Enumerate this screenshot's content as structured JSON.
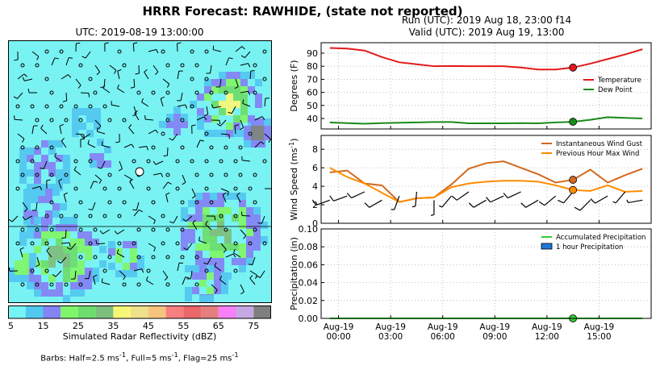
{
  "title": "HRRR Forecast: RAWHIDE, (state not reported)",
  "map": {
    "title": "UTC: 2019-08-19 13:00:00",
    "colorbar_label": "Simulated Radar Reflectivity (dBZ)",
    "colorbar_ticks": [
      "5",
      "15",
      "25",
      "35",
      "45",
      "55",
      "65",
      "75"
    ],
    "colorbar_colors": [
      "#76f4f4",
      "#53c7f0",
      "#8484f4",
      "#7ff56a",
      "#6ddd6d",
      "#7dbf7d",
      "#f7f777",
      "#efe08a",
      "#f7c47f",
      "#f77f7f",
      "#ec6767",
      "#e57f7f",
      "#f77ff7",
      "#c6a8e3",
      "#7f7f7f"
    ],
    "barbs_note_prefix": "Barbs: Half=2.5 ms",
    "barbs_note_full": ", Full=5 ms",
    "barbs_note_flag": ", Flag=25 ms",
    "barbs_note_sup": "-1"
  },
  "run_info": {
    "line1": "Run (UTC): 2019 Aug 18, 23:00 f14",
    "line2": "Valid (UTC): 2019 Aug 19, 13:00"
  },
  "chart_data": [
    {
      "type": "line",
      "ylabel": "Degrees (F)",
      "x": [
        0,
        1,
        2,
        3,
        4,
        5,
        6,
        7,
        8,
        9,
        10,
        11,
        12,
        13,
        14,
        15,
        16,
        17,
        18
      ],
      "ylim": [
        32,
        98
      ],
      "yticks": [
        40,
        50,
        60,
        70,
        80,
        90
      ],
      "legend": "right",
      "series": [
        {
          "name": "Temperature",
          "color": "#e31a1c",
          "values": [
            94,
            93.5,
            92,
            87,
            83,
            81.5,
            80,
            80.2,
            80,
            80,
            80,
            79,
            77.5,
            77.5,
            79,
            82,
            85.5,
            89,
            93
          ]
        },
        {
          "name": "Dew Point",
          "color": "#1a8a1a",
          "values": [
            37,
            36.5,
            36,
            36.5,
            36.8,
            37,
            37.3,
            37.3,
            36.3,
            36.3,
            36.3,
            36.5,
            36.3,
            37,
            37.5,
            39,
            41,
            40.5,
            40
          ]
        }
      ],
      "marker_index": 14
    },
    {
      "type": "line",
      "ylabel": "Wind Speed (ms",
      "ylabel_sup": "-1",
      "ylabel_suffix": ")",
      "x": [
        0,
        1,
        2,
        3,
        4,
        5,
        6,
        7,
        8,
        9,
        10,
        11,
        12,
        13,
        14,
        15,
        16,
        17,
        18
      ],
      "ylim": [
        0,
        9.5
      ],
      "yticks": [
        0,
        2,
        4,
        6,
        8
      ],
      "legend": "top-right",
      "series": [
        {
          "name": "Instantaneous Wind Gust",
          "color": "#d2691e",
          "values": [
            5.5,
            5.7,
            4.3,
            4.1,
            2.3,
            2.7,
            2.8,
            4.2,
            5.9,
            6.5,
            6.7,
            6.0,
            5.3,
            4.4,
            4.7,
            5.8,
            4.4,
            5.2,
            5.9
          ]
        },
        {
          "name": "Previous Hour Max Wind",
          "color": "#ff8c00",
          "values": [
            6.0,
            5.0,
            4.3,
            3.3,
            2.3,
            2.7,
            2.8,
            3.9,
            4.3,
            4.5,
            4.6,
            4.6,
            4.5,
            4.1,
            3.6,
            3.5,
            4.1,
            3.4,
            3.5
          ]
        }
      ],
      "marker_index": 14,
      "barbs": [
        {
          "x": 0,
          "dir": 250,
          "speed": 5
        },
        {
          "x": 1,
          "dir": 250,
          "speed": 5
        },
        {
          "x": 2,
          "dir": 245,
          "speed": 5
        },
        {
          "x": 3,
          "dir": 240,
          "speed": 5
        },
        {
          "x": 4,
          "dir": 200,
          "speed": 2.5
        },
        {
          "x": 5,
          "dir": 185,
          "speed": 2.5
        },
        {
          "x": 6,
          "dir": 180,
          "speed": 2.5
        },
        {
          "x": 7,
          "dir": 220,
          "speed": 2.5
        },
        {
          "x": 8,
          "dir": 235,
          "speed": 5
        },
        {
          "x": 9,
          "dir": 240,
          "speed": 5
        },
        {
          "x": 10,
          "dir": 245,
          "speed": 5
        },
        {
          "x": 11,
          "dir": 245,
          "speed": 5
        },
        {
          "x": 12,
          "dir": 240,
          "speed": 5
        },
        {
          "x": 13,
          "dir": 230,
          "speed": 5
        },
        {
          "x": 14,
          "dir": 220,
          "speed": 5
        },
        {
          "x": 15,
          "dir": 225,
          "speed": 5
        },
        {
          "x": 16,
          "dir": 240,
          "speed": 5
        },
        {
          "x": 17,
          "dir": 220,
          "speed": 2.5
        },
        {
          "x": 18,
          "dir": 260,
          "speed": 2.5
        }
      ]
    },
    {
      "type": "line",
      "ylabel": "Precipitation (in)",
      "x": [
        0,
        1,
        2,
        3,
        4,
        5,
        6,
        7,
        8,
        9,
        10,
        11,
        12,
        13,
        14,
        15,
        16,
        17,
        18
      ],
      "ylim": [
        0,
        0.1
      ],
      "yticks": [
        "0.00",
        "0.02",
        "0.04",
        "0.06",
        "0.08",
        "0.10"
      ],
      "legend": "top-right",
      "series": [
        {
          "name": "Accumulated Precipitation",
          "color": "#32cd32",
          "values": [
            0,
            0,
            0,
            0,
            0,
            0,
            0,
            0,
            0,
            0,
            0,
            0,
            0,
            0,
            0,
            0,
            0,
            0,
            0
          ]
        },
        {
          "name": "1 hour Precipitation",
          "color": "#1f78d8",
          "kind": "bar",
          "values": [
            0,
            0,
            0,
            0,
            0,
            0,
            0,
            0,
            0,
            0,
            0,
            0,
            0,
            0,
            0,
            0,
            0,
            0,
            0
          ]
        }
      ],
      "marker_index": 14,
      "xticks": [
        {
          "x": 0.5,
          "line1": "Aug-19",
          "line2": "00:00"
        },
        {
          "x": 3.5,
          "line1": "Aug-19",
          "line2": "03:00"
        },
        {
          "x": 6.5,
          "line1": "Aug-19",
          "line2": "06:00"
        },
        {
          "x": 9.5,
          "line1": "Aug-19",
          "line2": "09:00"
        },
        {
          "x": 12.5,
          "line1": "Aug-19",
          "line2": "12:00"
        },
        {
          "x": 15.5,
          "line1": "Aug-19",
          "line2": "15:00"
        }
      ]
    }
  ]
}
